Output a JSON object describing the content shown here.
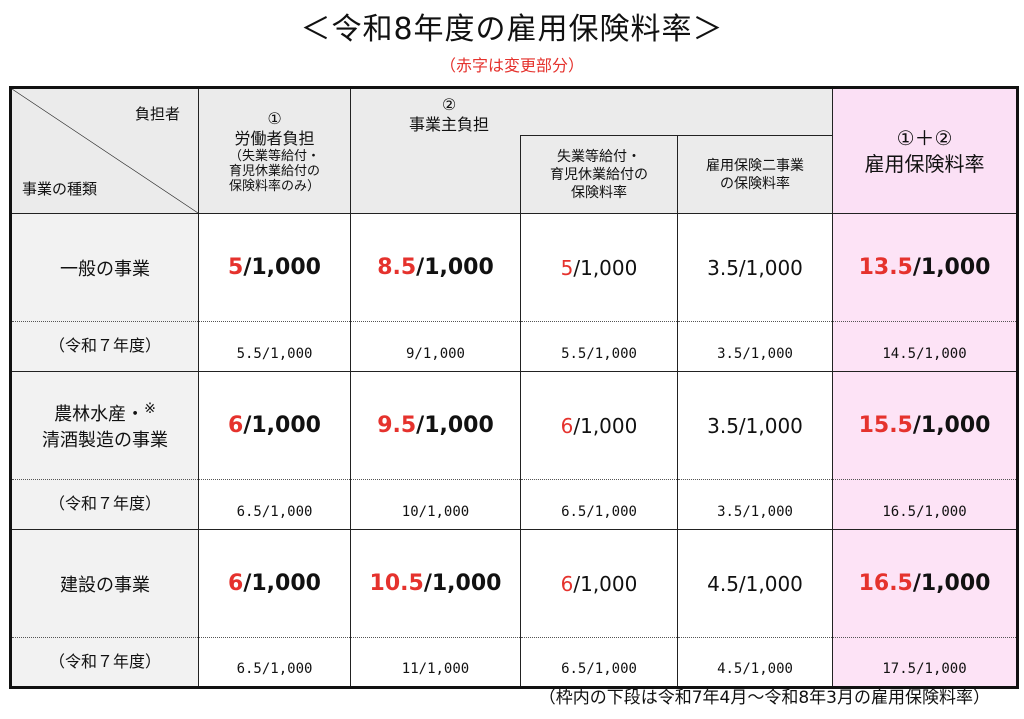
{
  "title": "＜令和8年度の雇用保険料率＞",
  "subtitle": "（赤字は変更部分）",
  "footnote": "（枠内の下段は令和7年4月～令和8年3月の雇用保険料率）",
  "header": {
    "burden": "負担者",
    "kind": "事業の種類",
    "worker_num": "①",
    "worker_title": "労働者負担",
    "worker_note1": "（失業等給付・",
    "worker_note2": "育児休業給付の",
    "worker_note3": "保険料率のみ）",
    "employer_num": "②",
    "employer_title": "事業主負担",
    "employer_sub1_l1": "失業等給付・",
    "employer_sub1_l2": "育児休業給付の",
    "employer_sub1_l3": "保険料率",
    "employer_sub2_l1": "雇用保険二事業",
    "employer_sub2_l2": "の保険料率",
    "total_num": "①＋②",
    "total_title": "雇用保険料率"
  },
  "rows": [
    {
      "label": "一般の事業",
      "worker_red": "5",
      "worker_rest": "/1,000",
      "employer_red": "8.5",
      "employer_rest": "/1,000",
      "unemp_red": "5",
      "unemp_rest": "/1,000",
      "two": "3.5/1,000",
      "total_red": "13.5",
      "total_rest": "/1,000",
      "prev_label": "（令和７年度）",
      "prev_worker": "5.5/1,000",
      "prev_employer": "9/1,000",
      "prev_unemp": "5.5/1,000",
      "prev_two": "3.5/1,000",
      "prev_total": "14.5/1,000"
    },
    {
      "label_l1": "農林水産・",
      "label_mark": "※",
      "label_l2": "清酒製造の事業",
      "worker_red": "6",
      "worker_rest": "/1,000",
      "employer_red": "9.5",
      "employer_rest": "/1,000",
      "unemp_red": "6",
      "unemp_rest": "/1,000",
      "two": "3.5/1,000",
      "total_red": "15.5",
      "total_rest": "/1,000",
      "prev_label": "（令和７年度）",
      "prev_worker": "6.5/1,000",
      "prev_employer": "10/1,000",
      "prev_unemp": "6.5/1,000",
      "prev_two": "3.5/1,000",
      "prev_total": "16.5/1,000"
    },
    {
      "label": "建設の事業",
      "worker_red": "6",
      "worker_rest": "/1,000",
      "employer_red": "10.5",
      "employer_rest": "/1,000",
      "unemp_red": "6",
      "unemp_rest": "/1,000",
      "two": "4.5/1,000",
      "total_red": "16.5",
      "total_rest": "/1,000",
      "prev_label": "（令和７年度）",
      "prev_worker": "6.5/1,000",
      "prev_employer": "11/1,000",
      "prev_unemp": "6.5/1,000",
      "prev_two": "4.5/1,000",
      "prev_total": "17.5/1,000"
    }
  ],
  "colors": {
    "red": "#e5322d",
    "header_bg": "#ebebeb",
    "total_bg": "#fde3f6"
  }
}
